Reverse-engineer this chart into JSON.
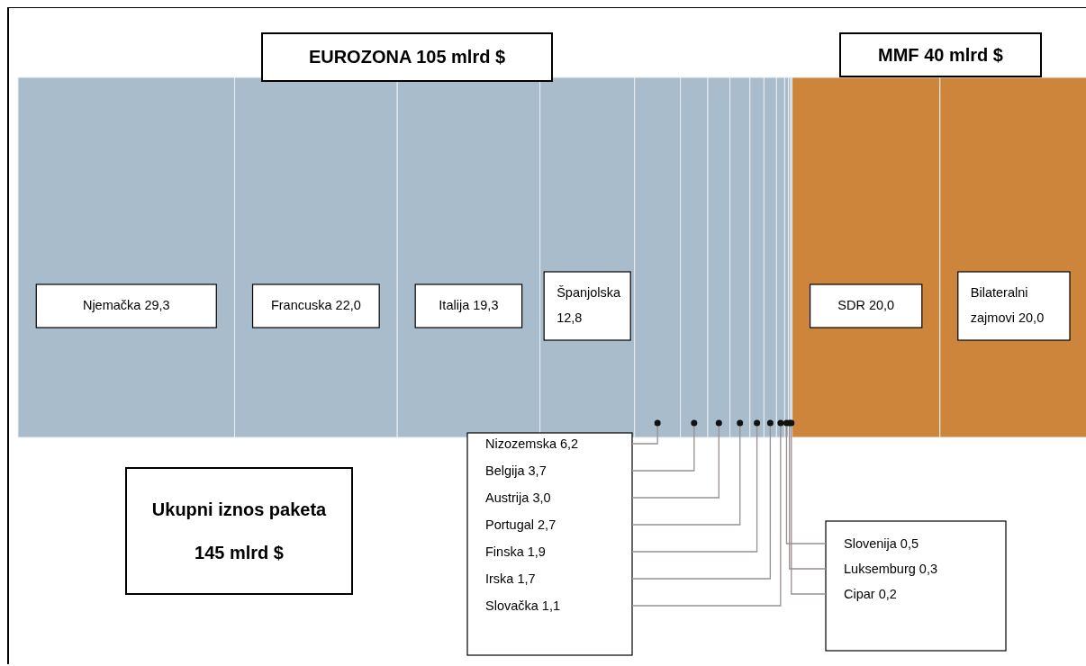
{
  "chart_data": {
    "type": "bar",
    "orientation": "horizontal",
    "stacked": true,
    "categories": [
      null
    ],
    "annotations": [
      "EUROZONA 105 mlrd $",
      "MMF 40 mlrd $",
      "Ukupni iznos paketa 145 mlrd $"
    ],
    "series": [
      {
        "name": "Njemačka",
        "color": "#a9bccb",
        "values": [
          29.3
        ],
        "value_labels": [
          "29,3"
        ]
      },
      {
        "name": "Francuska",
        "color": "#a9bccb",
        "values": [
          22.0
        ],
        "value_labels": [
          "22,0"
        ]
      },
      {
        "name": "Italija",
        "color": "#a9bccb",
        "values": [
          19.3
        ],
        "value_labels": [
          "19,3"
        ]
      },
      {
        "name": "Španjolska",
        "color": "#a9bccb",
        "values": [
          12.8
        ],
        "value_labels": [
          "12,8"
        ]
      },
      {
        "name": "Nizozemska",
        "color": "#a9bccb",
        "values": [
          6.2
        ],
        "value_labels": [
          "6,2"
        ]
      },
      {
        "name": "Belgija",
        "color": "#a9bccb",
        "values": [
          3.7
        ],
        "value_labels": [
          "3,7"
        ]
      },
      {
        "name": "Austrija",
        "color": "#a9bccb",
        "values": [
          3.0
        ],
        "value_labels": [
          "3,0"
        ]
      },
      {
        "name": "Portugal",
        "color": "#a9bccb",
        "values": [
          2.7
        ],
        "value_labels": [
          "2,7"
        ]
      },
      {
        "name": "Finska",
        "color": "#a9bccb",
        "values": [
          1.9
        ],
        "value_labels": [
          "1,9"
        ]
      },
      {
        "name": "Irska",
        "color": "#a9bccb",
        "values": [
          1.7
        ],
        "value_labels": [
          "1,7"
        ]
      },
      {
        "name": "Slovačka",
        "color": "#a9bccb",
        "values": [
          1.1
        ],
        "value_labels": [
          "1,1"
        ]
      },
      {
        "name": "Slovenija",
        "color": "#a9bccb",
        "values": [
          0.5
        ],
        "value_labels": [
          "0,5"
        ]
      },
      {
        "name": "Luksemburg",
        "color": "#a9bccb",
        "values": [
          0.3
        ],
        "value_labels": [
          "0,3"
        ]
      },
      {
        "name": "Cipar",
        "color": "#a9bccb",
        "values": [
          0.2
        ],
        "value_labels": [
          "0,2"
        ]
      },
      {
        "name": "SDR",
        "color": "#cd853b",
        "values": [
          20.0
        ],
        "value_labels": [
          "20,0"
        ]
      },
      {
        "name": "Bilateralni zajmovi",
        "color": "#cd853b",
        "values": [
          20.0
        ],
        "value_labels": [
          "20,0"
        ]
      }
    ]
  }
}
